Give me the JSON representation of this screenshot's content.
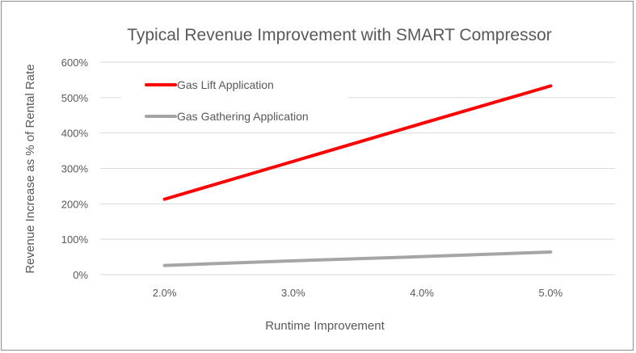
{
  "chart_data": {
    "type": "line",
    "title": "Typical Revenue Improvement with SMART Compressor",
    "xlabel": "Runtime Improvement",
    "ylabel": "Revenue Increase as % of Rental Rate",
    "categories": [
      "2.0%",
      "3.0%",
      "4.0%",
      "5.0%"
    ],
    "ylim": [
      0,
      600
    ],
    "yticks": [
      "0%",
      "100%",
      "200%",
      "300%",
      "400%",
      "500%",
      "600%"
    ],
    "grid": true,
    "legend": "top-left",
    "series": [
      {
        "name": "Gas Lift Application",
        "color": "#ff0000",
        "values": [
          213,
          320,
          427,
          533
        ]
      },
      {
        "name": "Gas Gathering Application",
        "color": "#a5a5a5",
        "values": [
          26,
          39,
          51,
          64
        ]
      }
    ]
  }
}
